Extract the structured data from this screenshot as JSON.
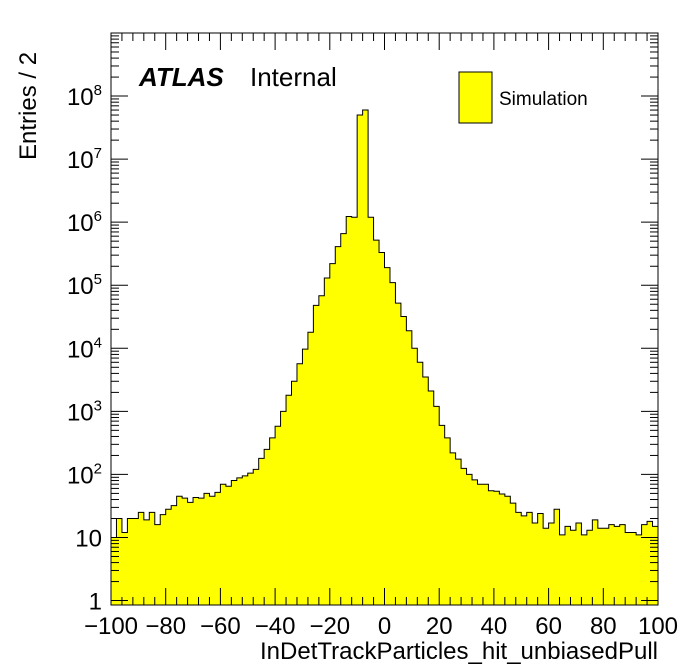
{
  "chart_data": {
    "type": "bar",
    "histogram_style": "step-filled",
    "fill_color": "#ffff00",
    "line_color": "#000000",
    "xlabel": "InDetTrackParticles_hit_unbiasedPull",
    "ylabel": "Entries / 2",
    "xlim": [
      -100,
      100
    ],
    "ylim": [
      0.85,
      1000000000
    ],
    "y_scale": "log",
    "bin_width": 2,
    "x_ticks": [
      -100,
      -80,
      -60,
      -40,
      -20,
      0,
      20,
      40,
      60,
      80,
      100
    ],
    "x_tick_labels": [
      "−100",
      "−80",
      "−60",
      "−40",
      "−20",
      "0",
      "20",
      "40",
      "60",
      "80",
      "100"
    ],
    "y_ticks": [
      {
        "value": 1,
        "base": "1",
        "exp": ""
      },
      {
        "value": 10,
        "base": "10",
        "exp": ""
      },
      {
        "value": 100,
        "base": "10",
        "exp": "2"
      },
      {
        "value": 1000,
        "base": "10",
        "exp": "3"
      },
      {
        "value": 10000,
        "base": "10",
        "exp": "4"
      },
      {
        "value": 100000,
        "base": "10",
        "exp": "5"
      },
      {
        "value": 1000000,
        "base": "10",
        "exp": "6"
      },
      {
        "value": 10000000,
        "base": "10",
        "exp": "7"
      },
      {
        "value": 100000000,
        "base": "10",
        "exp": "8"
      }
    ],
    "bin_edges_start": -100,
    "values": [
      10,
      20,
      12,
      20,
      20,
      25,
      19,
      25,
      16,
      23,
      28,
      32,
      45,
      42,
      36,
      43,
      42,
      50,
      45,
      52,
      70,
      65,
      80,
      88,
      95,
      105,
      120,
      180,
      250,
      380,
      580,
      1000,
      1800,
      3000,
      5700,
      9700,
      18000,
      48000,
      68000,
      130000,
      220000,
      410000,
      660000,
      1230000,
      1200000,
      50000000,
      60000000,
      1200000,
      520000,
      330000,
      190000,
      110000,
      52000,
      32000,
      19000,
      10000,
      6000,
      3500,
      2100,
      1200,
      600,
      380,
      220,
      175,
      125,
      100,
      82,
      70,
      70,
      55,
      54,
      49,
      45,
      35,
      25,
      22,
      25,
      17,
      24,
      14,
      17,
      28,
      11,
      15,
      13,
      17,
      11,
      13,
      19,
      14,
      14,
      16,
      15,
      16,
      12,
      12,
      11,
      16,
      18,
      15
    ]
  },
  "labels": {
    "atlas": "ATLAS",
    "internal": "Internal",
    "legend": "Simulation"
  }
}
